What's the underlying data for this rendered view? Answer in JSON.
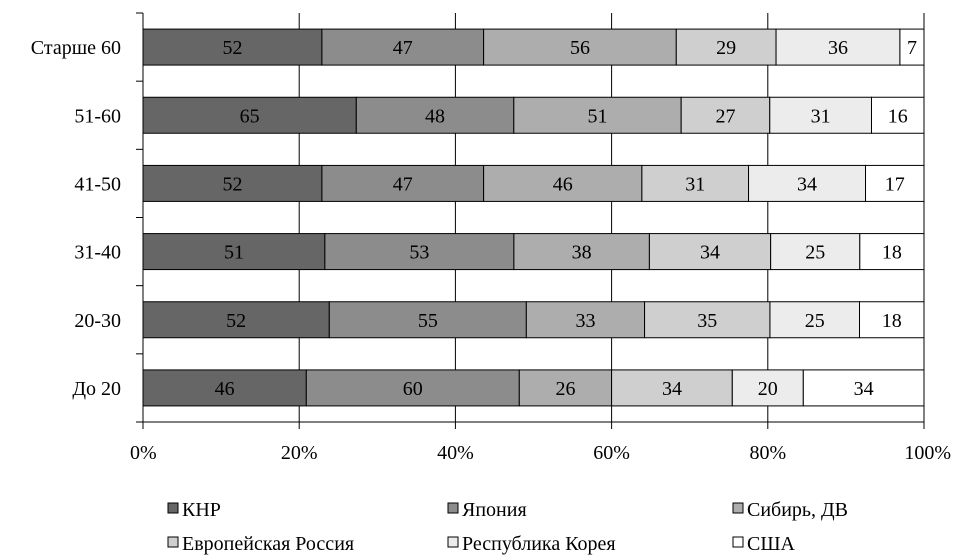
{
  "chart_data": {
    "type": "bar",
    "orientation": "horizontal",
    "stacked": "percent",
    "categories": [
      "Старше 60",
      "51-60",
      "41-50",
      "31-40",
      "20-30",
      "До 20"
    ],
    "series": [
      {
        "name": "КНР",
        "color": "#666666",
        "values": [
          52,
          65,
          52,
          51,
          52,
          46
        ]
      },
      {
        "name": "Япония",
        "color": "#8c8c8c",
        "values": [
          47,
          48,
          47,
          53,
          55,
          60
        ]
      },
      {
        "name": "Сибирь, ДВ",
        "color": "#adadad",
        "values": [
          56,
          51,
          46,
          38,
          33,
          26
        ]
      },
      {
        "name": "Европейская Россия",
        "color": "#cfcfcf",
        "values": [
          29,
          27,
          31,
          34,
          35,
          34
        ]
      },
      {
        "name": "Республика Корея",
        "color": "#ececec",
        "values": [
          36,
          31,
          34,
          25,
          25,
          20
        ]
      },
      {
        "name": "США",
        "color": "#ffffff",
        "values": [
          7,
          16,
          17,
          18,
          18,
          34
        ]
      }
    ],
    "x_ticks": [
      "0%",
      "20%",
      "40%",
      "60%",
      "80%",
      "100%"
    ],
    "xlim": [
      0,
      100
    ],
    "grid": "vertical",
    "legend": "bottom"
  }
}
